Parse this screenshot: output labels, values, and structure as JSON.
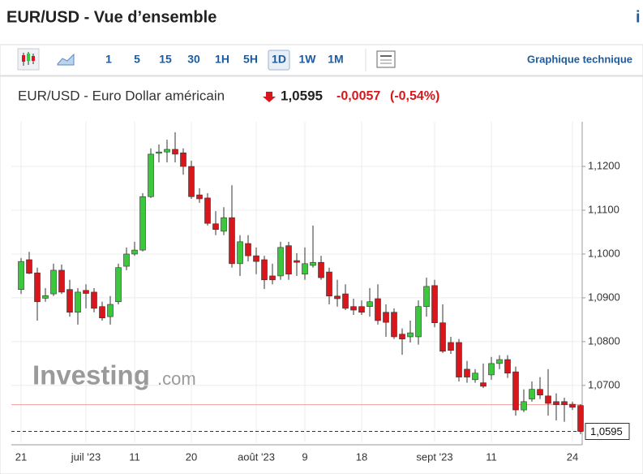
{
  "header": {
    "title": "EUR/USD - Vue d’ensemble"
  },
  "toolbar": {
    "intervals": [
      "1",
      "5",
      "15",
      "30",
      "1H",
      "5H",
      "1D",
      "1W",
      "1M"
    ],
    "active_interval_index": 6,
    "link": "Graphique technique"
  },
  "quote": {
    "name": "EUR/USD - Euro Dollar américain",
    "price": "1,0595",
    "change": "-0,0057",
    "change_pct": "(-0,54%)"
  },
  "watermark": {
    "brand": "Investing",
    "domain": ".com"
  },
  "chart_data": {
    "type": "candlestick",
    "categories": [
      "21",
      null,
      null,
      null,
      null,
      null,
      null,
      null,
      "juil '23",
      null,
      null,
      null,
      null,
      null,
      "11",
      null,
      null,
      null,
      null,
      null,
      null,
      "20",
      null,
      null,
      null,
      null,
      null,
      null,
      null,
      "août '23",
      null,
      null,
      null,
      null,
      null,
      "9",
      null,
      null,
      null,
      null,
      null,
      null,
      "18",
      null,
      null,
      null,
      null,
      null,
      null,
      null,
      null,
      "sept '23",
      null,
      null,
      null,
      null,
      null,
      null,
      "11",
      null,
      null,
      null,
      null,
      null,
      null,
      null,
      null,
      null,
      "24",
      null
    ],
    "open": [
      1.0919,
      1.0987,
      1.0957,
      1.0899,
      1.0909,
      1.0963,
      1.0919,
      1.0867,
      1.0917,
      1.0913,
      1.088,
      1.0857,
      1.0891,
      1.0972,
      1.1,
      1.1009,
      1.1131,
      1.123,
      1.1233,
      1.1239,
      1.1231,
      1.12,
      1.1135,
      1.1128,
      1.1069,
      1.1052,
      1.1083,
      1.0978,
      1.1024,
      1.0996,
      1.0987,
      1.095,
      1.095,
      1.1019,
      1.0985,
      1.0954,
      1.0974,
      1.0981,
      1.0959,
      1.0904,
      1.0909,
      1.088,
      1.088,
      1.088,
      1.0898,
      1.0867,
      1.0867,
      1.0817,
      1.0811,
      1.0811,
      1.088,
      1.0928,
      1.0843,
      1.0798,
      1.0798,
      1.0737,
      1.0713,
      1.0706,
      1.0724,
      1.075,
      1.0759,
      1.0731,
      1.0644,
      1.0669,
      1.0691,
      1.0676,
      1.0663,
      1.0663,
      1.0657,
      1.0654
    ],
    "high": [
      1.0991,
      1.1005,
      1.0969,
      1.0922,
      1.0978,
      1.0976,
      1.0941,
      1.0922,
      1.0931,
      1.0922,
      1.0891,
      1.0904,
      1.0978,
      1.1015,
      1.1028,
      1.1139,
      1.1241,
      1.125,
      1.1261,
      1.1278,
      1.1241,
      1.1213,
      1.115,
      1.1139,
      1.1098,
      1.1107,
      1.1157,
      1.1043,
      1.1043,
      1.1015,
      1.0996,
      1.0978,
      1.1028,
      1.1028,
      1.1002,
      1.1015,
      1.1065,
      1.0996,
      1.0969,
      1.0941,
      1.0931,
      1.0898,
      1.0894,
      1.0922,
      1.0931,
      1.0885,
      1.0876,
      1.083,
      1.0848,
      1.0894,
      1.0946,
      1.0941,
      1.0885,
      1.0811,
      1.0806,
      1.0756,
      1.0737,
      1.075,
      1.0765,
      1.0769,
      1.0769,
      1.0743,
      1.0691,
      1.0709,
      1.0719,
      1.0737,
      1.0682,
      1.0672,
      1.0663,
      1.0657
    ],
    "low": [
      1.0909,
      1.0954,
      1.0848,
      1.0891,
      1.0904,
      1.0909,
      1.0857,
      1.0839,
      1.0876,
      1.0867,
      1.0848,
      1.0839,
      1.0885,
      1.0963,
      1.0996,
      1.1006,
      1.1128,
      1.1209,
      1.1209,
      1.1209,
      1.1181,
      1.1126,
      1.1117,
      1.1065,
      1.1043,
      1.1043,
      1.0969,
      1.095,
      1.0983,
      1.0954,
      1.092,
      1.0931,
      1.0941,
      1.0941,
      1.095,
      1.0941,
      1.0969,
      1.0941,
      1.0885,
      1.088,
      1.0872,
      1.0861,
      1.0861,
      1.0857,
      1.0839,
      1.0811,
      1.0806,
      1.077,
      1.0798,
      1.0793,
      1.0857,
      1.0833,
      1.0774,
      1.0772,
      1.0709,
      1.0706,
      1.0706,
      1.0694,
      1.0713,
      1.0737,
      1.0717,
      1.0631,
      1.0639,
      1.0663,
      1.0669,
      1.0631,
      1.062,
      1.0617,
      1.0644,
      1.0589
    ],
    "close": [
      1.0983,
      1.0956,
      1.0891,
      1.0905,
      1.0963,
      1.0913,
      1.0867,
      1.0913,
      1.091,
      1.0876,
      1.0854,
      1.0885,
      1.0969,
      1.1,
      1.1009,
      1.1131,
      1.1228,
      1.1233,
      1.1239,
      1.1228,
      1.12,
      1.1131,
      1.1126,
      1.107,
      1.1056,
      1.1083,
      1.0978,
      1.1028,
      1.0996,
      1.0983,
      1.0941,
      1.0941,
      1.1015,
      1.0954,
      1.0981,
      1.0978,
      1.0981,
      1.0946,
      1.0904,
      1.0898,
      1.0876,
      1.0872,
      1.0867,
      1.0891,
      1.0848,
      1.0844,
      1.0811,
      1.0806,
      1.082,
      1.088,
      1.0926,
      1.0843,
      1.0778,
      1.078,
      1.0719,
      1.0719,
      1.0728,
      1.0698,
      1.075,
      1.0759,
      1.0728,
      1.0644,
      1.0663,
      1.0691,
      1.0678,
      1.0659,
      1.0656,
      1.0656,
      1.065,
      1.0595
    ],
    "up_color": "#3cc83c",
    "down_color": "#d9161c",
    "ylim": [
      1.057,
      1.1302
    ],
    "yticks": [
      {
        "value": 1.07,
        "label": "1,0700"
      },
      {
        "value": 1.08,
        "label": "1,0800"
      },
      {
        "value": 1.09,
        "label": "1,0900"
      },
      {
        "value": 1.1,
        "label": "1,1000"
      },
      {
        "value": 1.11,
        "label": "1,1100"
      },
      {
        "value": 1.12,
        "label": "1,1200"
      }
    ],
    "reference_line": 1.0656,
    "grid": true
  }
}
